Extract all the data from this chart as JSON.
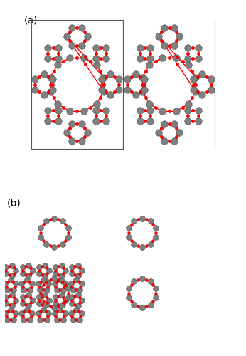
{
  "figure_width": 3.46,
  "figure_height": 5.0,
  "dpi": 100,
  "background_color": "#ffffff",
  "si_color": "#808080",
  "o_color": "#ff0000",
  "bond_color": "#ff0000",
  "si_size": 8,
  "o_size": 4,
  "bond_lw": 1.0,
  "box_color": "#808080",
  "label_a": "(a)",
  "label_b": "(b)",
  "label_fontsize": 10
}
